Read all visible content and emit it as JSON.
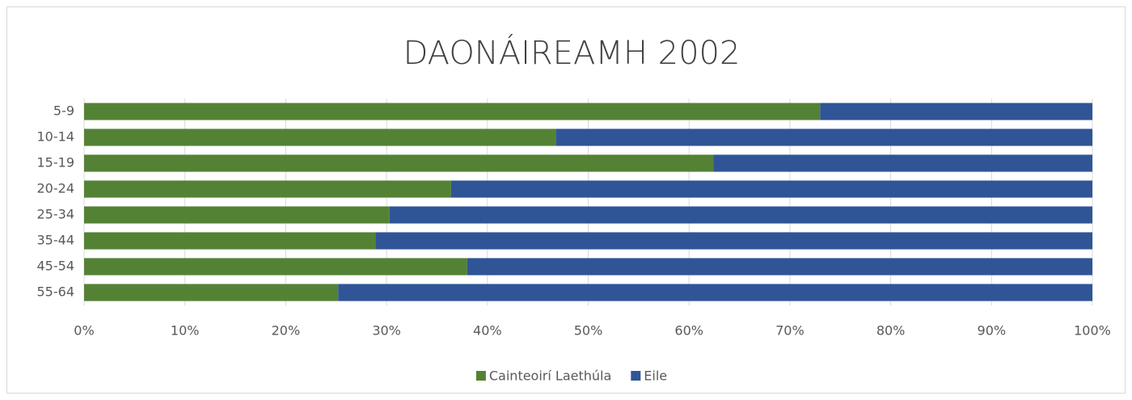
{
  "chart_data": {
    "type": "stacked-bar-horizontal",
    "title": "DAONÁIREAMH 2002",
    "categories": [
      "5-9",
      "10-14",
      "15-19",
      "20-24",
      "25-34",
      "35-44",
      "45-54",
      "55-64"
    ],
    "series": [
      {
        "name": "Cainteoirí Laethúla",
        "color": "#548235",
        "values": [
          73,
          46.8,
          62.4,
          36.4,
          30.3,
          28.9,
          38,
          25.2
        ]
      },
      {
        "name": "Eile",
        "color": "#2f5597",
        "values": [
          27,
          53.2,
          37.6,
          63.6,
          69.7,
          71.1,
          62,
          74.8
        ]
      }
    ],
    "xlim": [
      0,
      100
    ],
    "xticks": [
      {
        "value": 0,
        "label": "0%"
      },
      {
        "value": 10,
        "label": "10%"
      },
      {
        "value": 20,
        "label": "20%"
      },
      {
        "value": 30,
        "label": "30%"
      },
      {
        "value": 40,
        "label": "40%"
      },
      {
        "value": 50,
        "label": "50%"
      },
      {
        "value": 60,
        "label": "60%"
      },
      {
        "value": 70,
        "label": "70%"
      },
      {
        "value": 80,
        "label": "80%"
      },
      {
        "value": 90,
        "label": "90%"
      },
      {
        "value": 100,
        "label": "100%"
      }
    ],
    "grid": true,
    "legend": "bottom"
  }
}
